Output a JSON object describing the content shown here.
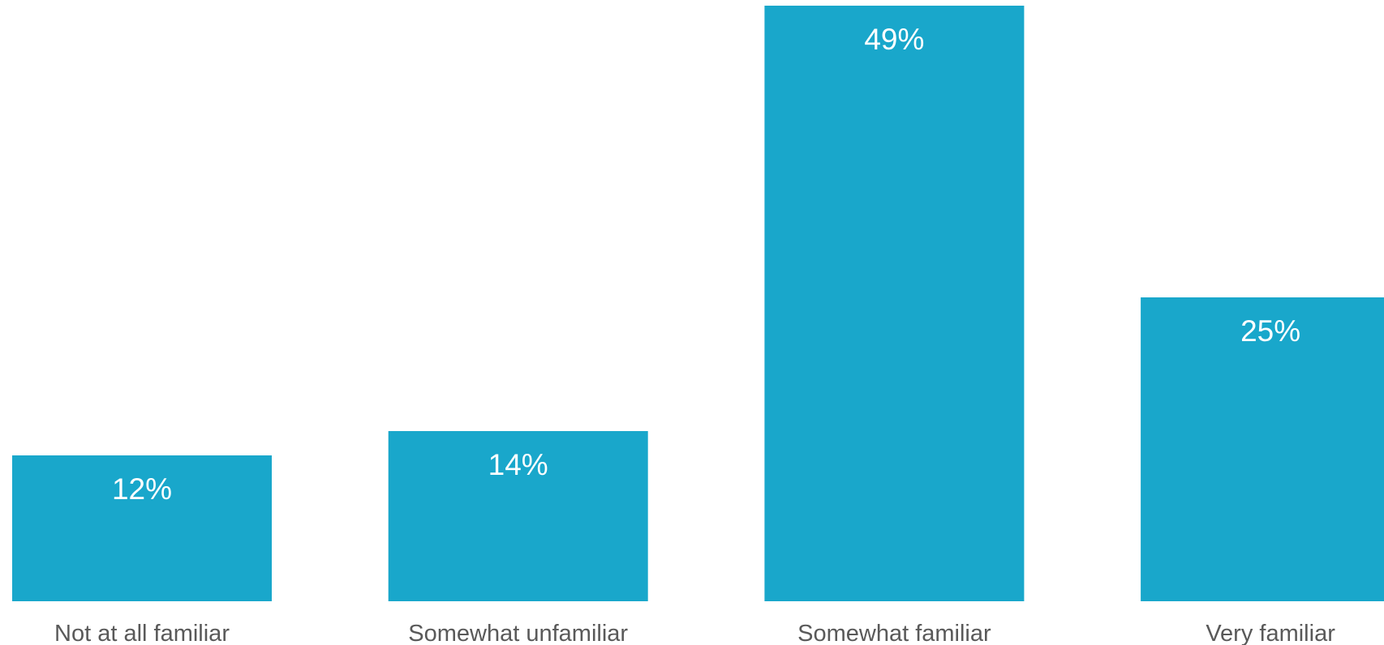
{
  "chart_data": {
    "type": "bar",
    "title": "",
    "xlabel": "",
    "ylabel": "",
    "categories": [
      "Not at all familiar",
      "Somewhat unfamiliar",
      "Somewhat familiar",
      "Very familiar"
    ],
    "values": [
      12,
      14,
      49,
      25
    ],
    "value_labels": [
      "12%",
      "14%",
      "49%",
      "25%"
    ],
    "unit": "%",
    "ylim": [
      0,
      49
    ],
    "grid": false,
    "legend": "none",
    "bar_color": "#19a7cb",
    "label_color": "#595959",
    "value_label_color": "#ffffff"
  }
}
